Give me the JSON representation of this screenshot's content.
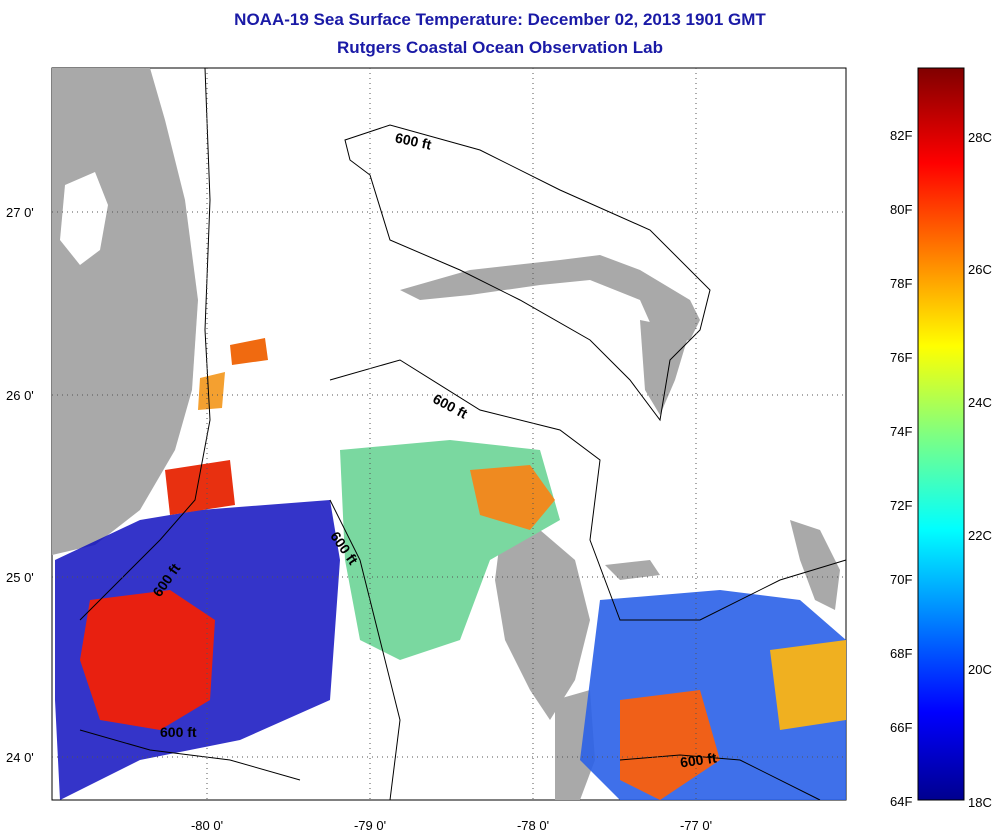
{
  "title_line1": "NOAA-19 Sea Surface Temperature:  December 02, 2013 1901 GMT",
  "title_line2": "Rutgers Coastal Ocean Observation Lab",
  "lat_labels": [
    "27 0'",
    "26 0'",
    "25 0'",
    "24 0'"
  ],
  "lon_labels": [
    "-80 0'",
    "-79 0'",
    "-78 0'",
    "-77 0'"
  ],
  "contour_labels": [
    "600 ft",
    "600 ft",
    "600 ft",
    "600 ft",
    "600 ft",
    "600 ft"
  ],
  "colorbar_f": [
    "82F",
    "80F",
    "78F",
    "76F",
    "74F",
    "72F",
    "70F",
    "68F",
    "66F",
    "64F"
  ],
  "colorbar_c": [
    "28C",
    "26C",
    "24C",
    "22C",
    "20C",
    "18C"
  ],
  "colors": {
    "title": "#1a1aa6",
    "land": "#a9a9a9"
  }
}
